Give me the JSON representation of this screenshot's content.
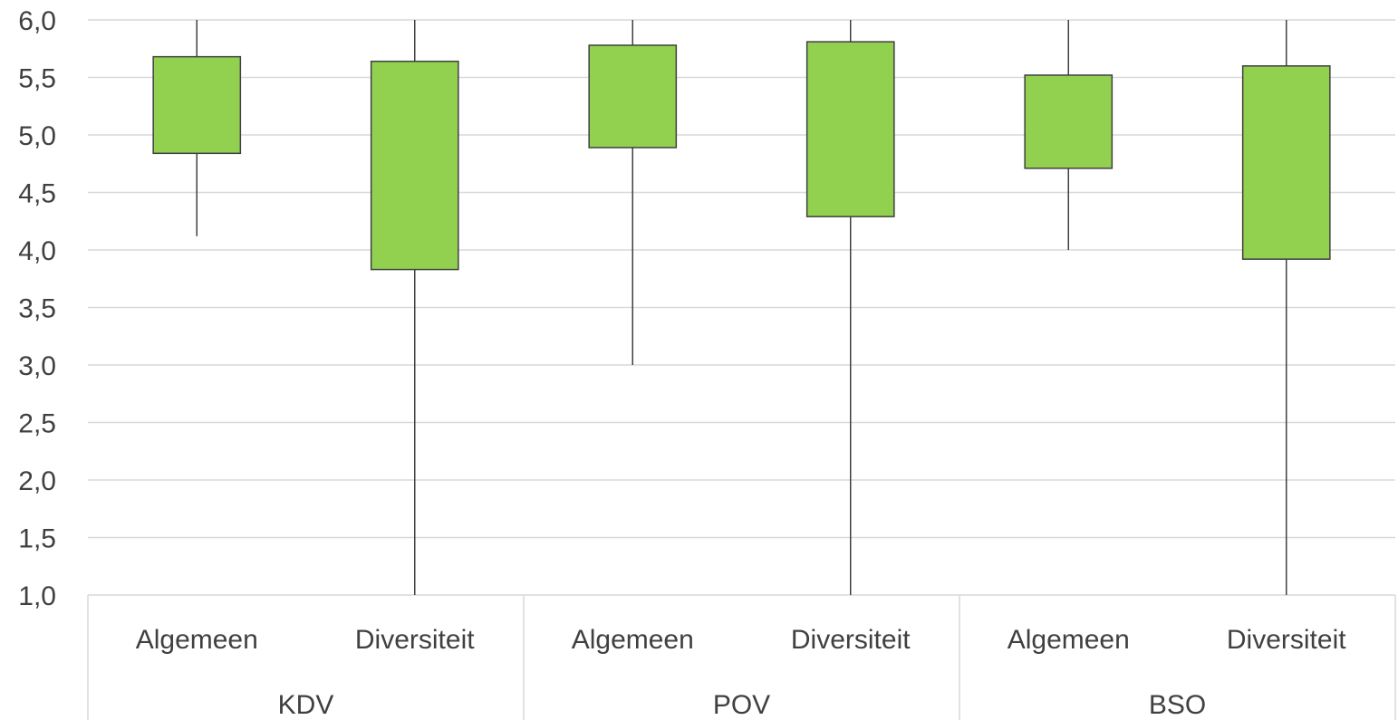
{
  "chart_data": {
    "type": "box",
    "ylim": [
      1.0,
      6.0
    ],
    "yticks": [
      "1,0",
      "1,5",
      "2,0",
      "2,5",
      "3,0",
      "3,5",
      "4,0",
      "4,5",
      "5,0",
      "5,5",
      "6,0"
    ],
    "ytick_values": [
      1.0,
      1.5,
      2.0,
      2.5,
      3.0,
      3.5,
      4.0,
      4.5,
      5.0,
      5.5,
      6.0
    ],
    "groups": [
      "KDV",
      "POV",
      "BSO"
    ],
    "categories": [
      "Algemeen",
      "Diversiteit",
      "Algemeen",
      "Diversiteit",
      "Algemeen",
      "Diversiteit"
    ],
    "boxes": [
      {
        "group": "KDV",
        "category": "Algemeen",
        "min": 4.12,
        "q1": 4.84,
        "q3": 5.68,
        "max": 6.0
      },
      {
        "group": "KDV",
        "category": "Diversiteit",
        "min": 1.0,
        "q1": 3.83,
        "q3": 5.64,
        "max": 6.0
      },
      {
        "group": "POV",
        "category": "Algemeen",
        "min": 3.0,
        "q1": 4.89,
        "q3": 5.78,
        "max": 6.0
      },
      {
        "group": "POV",
        "category": "Diversiteit",
        "min": 1.0,
        "q1": 4.29,
        "q3": 5.81,
        "max": 6.0
      },
      {
        "group": "BSO",
        "category": "Algemeen",
        "min": 4.0,
        "q1": 4.71,
        "q3": 5.52,
        "max": 6.0
      },
      {
        "group": "BSO",
        "category": "Diversiteit",
        "min": 1.0,
        "q1": 3.92,
        "q3": 5.6,
        "max": 6.0
      }
    ],
    "box_color": "#92d050",
    "grid": true,
    "legend": "none"
  }
}
